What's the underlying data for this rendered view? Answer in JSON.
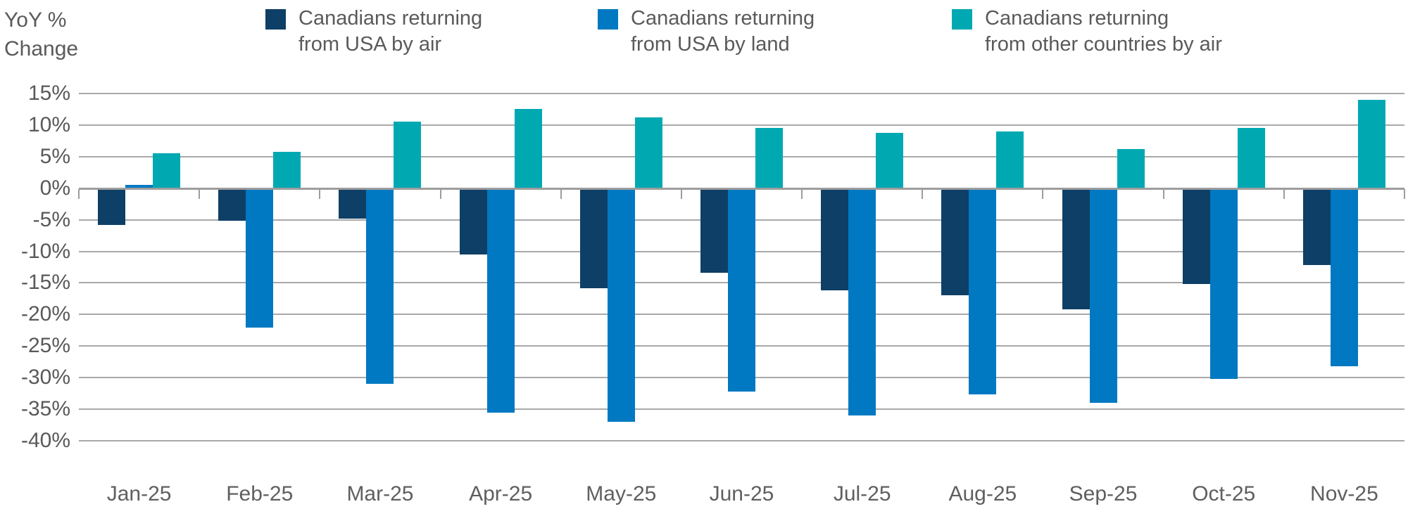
{
  "header": {
    "yoy_line1": "YoY %",
    "yoy_line2": "Change"
  },
  "legend": [
    {
      "line1": "Canadians returning",
      "line2": "from USA by air",
      "color": "#0e3f66"
    },
    {
      "line1": "Canadians returning",
      "line2": "from USA by land",
      "color": "#0079c2"
    },
    {
      "line1": "Canadians returning",
      "line2": "from other countries by air",
      "color": "#00a9b2"
    }
  ],
  "chart_data": {
    "type": "bar",
    "title": "",
    "ylabel": "YoY % Change",
    "xlabel": "",
    "categories": [
      "Jan-25",
      "Feb-25",
      "Mar-25",
      "Apr-25",
      "May-25",
      "Jun-25",
      "Jul-25",
      "Aug-25",
      "Sep-25",
      "Oct-25",
      "Nov-25"
    ],
    "series": [
      {
        "name": "Canadians returning from USA by air",
        "color": "#0e3f66",
        "values": [
          -5.8,
          -5.2,
          -4.8,
          -10.5,
          -15.8,
          -13.4,
          -16.2,
          -17,
          -19.2,
          -15.2,
          -12.2
        ]
      },
      {
        "name": "Canadians returning from USA by land",
        "color": "#0079c2",
        "values": [
          0.5,
          -22.1,
          -31,
          -35.5,
          -37,
          -32.2,
          -36,
          -32.6,
          -34,
          -30.2,
          -28.2
        ]
      },
      {
        "name": "Canadians returning from other countries by air",
        "color": "#00a9b2",
        "values": [
          5.5,
          5.8,
          10.6,
          12.6,
          11.2,
          9.6,
          8.8,
          9,
          6.2,
          9.6,
          14
        ]
      }
    ],
    "y_ticks": [
      "15%",
      "10%",
      "5%",
      "0%",
      "-5%",
      "-10%",
      "-15%",
      "-20%",
      "-25%",
      "-30%",
      "-35%",
      "-40%"
    ],
    "ylim": [
      -40,
      15
    ],
    "grid": true,
    "legend_position": "top",
    "gridline_color": "#a9a9a9",
    "axis_text_color": "#595959"
  }
}
